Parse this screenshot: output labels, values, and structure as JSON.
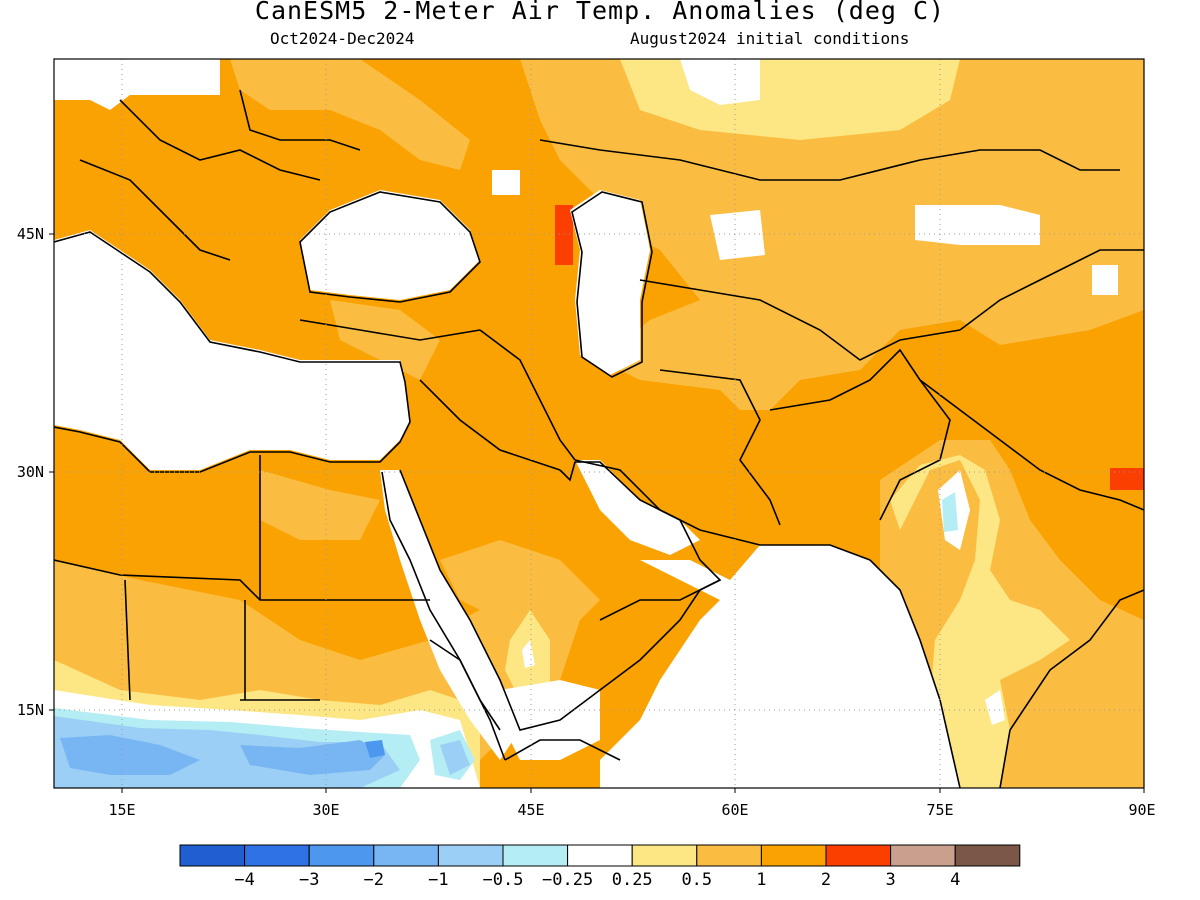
{
  "header": {
    "title": "CanESM5 2-Meter Air Temp. Anomalies (deg C)",
    "period": "Oct2024-Dec2024",
    "init": "August2024 initial conditions"
  },
  "map": {
    "lon_ticks": [
      {
        "value": 15,
        "label": "15E"
      },
      {
        "value": 30,
        "label": "30E"
      },
      {
        "value": 45,
        "label": "45E"
      },
      {
        "value": 60,
        "label": "60E"
      },
      {
        "value": 75,
        "label": "75E"
      },
      {
        "value": 90,
        "label": "90E"
      }
    ],
    "lat_ticks": [
      {
        "value": 45,
        "label": "45N"
      },
      {
        "value": 30,
        "label": "30N"
      },
      {
        "value": 15,
        "label": "15N"
      }
    ],
    "lon_range": [
      10,
      90
    ],
    "lat_range": [
      10,
      56
    ],
    "grid": "dotted"
  },
  "colorbar": {
    "bins": [
      {
        "color": "#1f5fcf"
      },
      {
        "color": "#2f72e6"
      },
      {
        "color": "#4d97ef"
      },
      {
        "color": "#78b6f3"
      },
      {
        "color": "#9ccff6"
      },
      {
        "color": "#b5edf4"
      },
      {
        "color": "#ffffff"
      },
      {
        "color": "#fde784"
      },
      {
        "color": "#fbbd41"
      },
      {
        "color": "#f9a202"
      },
      {
        "color": "#fb3f00"
      },
      {
        "color": "#c9a08e"
      },
      {
        "color": "#7a5746"
      }
    ],
    "labels": [
      "−4",
      "−3",
      "−2",
      "−1",
      "−0.5",
      "−0.25",
      "0.25",
      "0.5",
      "1",
      "2",
      "3",
      "4"
    ]
  }
}
